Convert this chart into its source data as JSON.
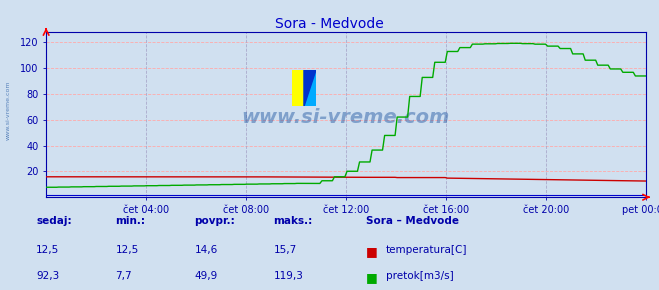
{
  "title": "Sora - Medvode",
  "title_color": "#0000cc",
  "bg_color": "#d0e0f0",
  "plot_bg_color": "#d0e0f0",
  "grid_color_h": "#ffaaaa",
  "grid_color_v": "#aaaacc",
  "watermark_text": "www.si-vreme.com",
  "watermark_color": "#1a52a0",
  "yticks": [
    20,
    40,
    60,
    80,
    100,
    120
  ],
  "ylim": [
    0,
    128
  ],
  "xtick_labels": [
    "čet 04:00",
    "čet 08:00",
    "čet 12:00",
    "čet 16:00",
    "čet 20:00",
    "pet 00:00"
  ],
  "tick_color": "#0000aa",
  "temp_color": "#cc0000",
  "flow_color": "#00aa00",
  "height_color": "#0000cc",
  "footer_color": "#0000aa",
  "temp_values_footer": [
    "12,5",
    "12,5",
    "14,6",
    "15,7"
  ],
  "flow_values_footer": [
    "92,3",
    "7,7",
    "49,9",
    "119,3"
  ],
  "legend_labels": [
    "temperatura[C]",
    "pretok[m3/s]"
  ],
  "legend_colors": [
    "#cc0000",
    "#00aa00"
  ],
  "n_points": 288
}
